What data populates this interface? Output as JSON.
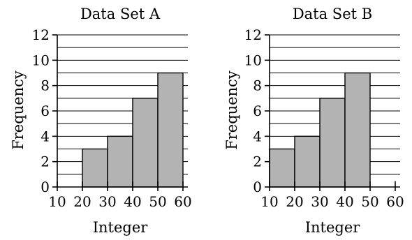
{
  "chart_data": [
    {
      "type": "bar",
      "title": "Data Set A",
      "xlabel": "Integer",
      "ylabel": "Frequency",
      "x_ticks": [
        "10",
        "20",
        "30",
        "40",
        "50",
        "60"
      ],
      "y_ticks": [
        "0",
        "2",
        "4",
        "6",
        "8",
        "10",
        "12"
      ],
      "xlim": [
        10,
        60
      ],
      "ylim": [
        0,
        12
      ],
      "grid": true,
      "bins": [
        {
          "start": 20,
          "end": 30,
          "value": 3
        },
        {
          "start": 30,
          "end": 40,
          "value": 4
        },
        {
          "start": 40,
          "end": 50,
          "value": 7
        },
        {
          "start": 50,
          "end": 60,
          "value": 9
        }
      ],
      "bar_color": "#b3b3b3"
    },
    {
      "type": "bar",
      "title": "Data Set B",
      "xlabel": "Integer",
      "ylabel": "Frequency",
      "x_ticks": [
        "10",
        "20",
        "30",
        "40",
        "50",
        "60"
      ],
      "y_ticks": [
        "0",
        "2",
        "4",
        "6",
        "8",
        "10",
        "12"
      ],
      "xlim": [
        10,
        60
      ],
      "ylim": [
        0,
        12
      ],
      "grid": true,
      "bins": [
        {
          "start": 10,
          "end": 20,
          "value": 3
        },
        {
          "start": 20,
          "end": 30,
          "value": 4
        },
        {
          "start": 30,
          "end": 40,
          "value": 7
        },
        {
          "start": 40,
          "end": 50,
          "value": 9
        }
      ],
      "bar_color": "#b3b3b3"
    }
  ]
}
